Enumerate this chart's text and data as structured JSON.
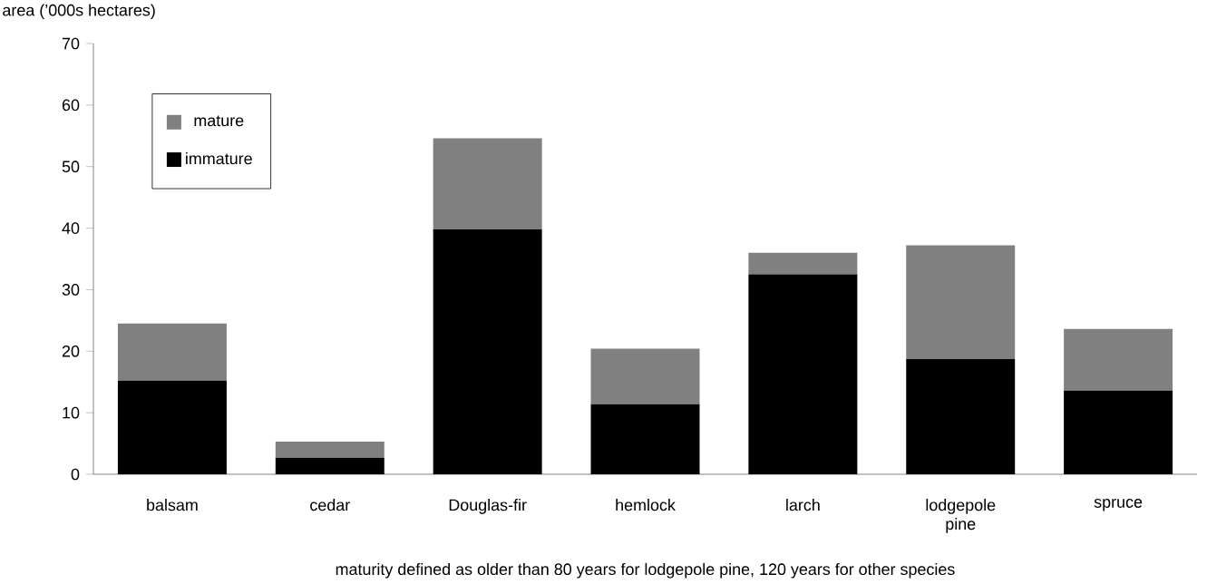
{
  "chart_data": {
    "type": "bar",
    "stacked": true,
    "ylabel": "area (’000s hectares)",
    "categories": [
      "balsam",
      "cedar",
      "Douglas-fir",
      "hemlock",
      "larch",
      "lodgepole pine",
      "spruce"
    ],
    "series": [
      {
        "name": "immature",
        "color": "#000000",
        "values": [
          15.2,
          2.7,
          39.8,
          11.4,
          32.5,
          18.7,
          13.6
        ]
      },
      {
        "name": "mature",
        "color": "#808080",
        "values": [
          9.3,
          2.6,
          14.8,
          9.0,
          3.5,
          18.5,
          10.0
        ]
      }
    ],
    "ylim": [
      0,
      70
    ],
    "yticks": [
      0,
      10,
      20,
      30,
      40,
      50,
      60,
      70
    ],
    "legend": "top left",
    "grid": false,
    "annotations": [
      "maturity defined as older than 80 years for lodgepole pine, 120 years for other species"
    ]
  }
}
